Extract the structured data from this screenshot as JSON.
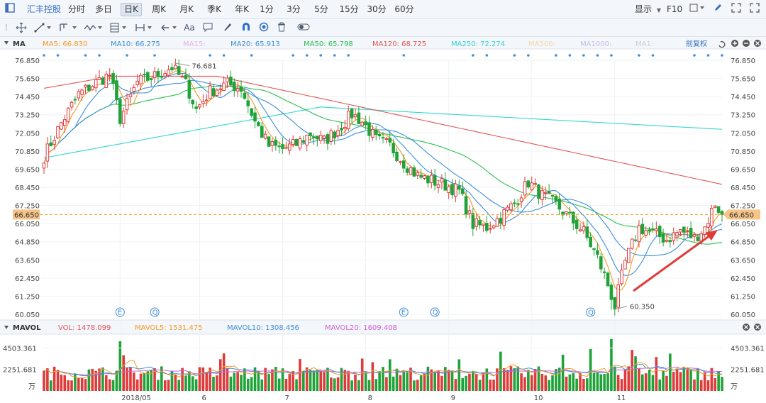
{
  "topbar": {
    "stock_name": "汇丰控股",
    "periods": [
      "分时",
      "多日",
      "日K",
      "周K",
      "月K",
      "季K",
      "年K",
      "1分",
      "3分",
      "5分",
      "15分",
      "30分",
      "60分"
    ],
    "active_period": "日K",
    "display_label": "显示",
    "f10_label": "F10"
  },
  "toolbar": {
    "text_tool": "Aa"
  },
  "main_panel": {
    "title": "MA",
    "restore_label": "前复权",
    "ma_legend": [
      {
        "label": "MA5: 66.830",
        "color": "#f59a23"
      },
      {
        "label": "MA10: 66.275",
        "color": "#3d8fd8"
      },
      {
        "label": "MA15:",
        "color": "#e1b6e0"
      },
      {
        "label": "MA20: 65.913",
        "color": "#3d8fd8"
      },
      {
        "label": "MA50: 65.798",
        "color": "#2bbf4e"
      },
      {
        "label": "MA120: 68.725",
        "color": "#e25858"
      },
      {
        "label": "MA250: 72.274",
        "color": "#33d6d0"
      },
      {
        "label": "MA500:",
        "color": "#f5d7a6"
      },
      {
        "label": "MA1000:",
        "color": "#c6bde8"
      },
      {
        "label": "MA1:",
        "color": "#c9cfd6"
      }
    ],
    "current_price": "66.650",
    "high_label": "76.681",
    "low_label": "60.350",
    "event_markers": [
      "E",
      "Q",
      "E",
      "Q",
      "Q"
    ]
  },
  "volume_panel": {
    "title": "MAVOL",
    "legend": [
      {
        "label": "VOL: 1478.099",
        "color": "#e25858"
      },
      {
        "label": "MAVOL5: 1531.475",
        "color": "#f59a23"
      },
      {
        "label": "MAVOL10: 1308.456",
        "color": "#3d8fd8"
      },
      {
        "label": "MAVOL20: 1609.408",
        "color": "#d05ed6"
      }
    ],
    "ticks": [
      "4503.361",
      "2251.681"
    ],
    "unit": "万"
  },
  "x_labels": [
    "2018/05",
    "6",
    "7",
    "8",
    "9",
    "10",
    "11"
  ],
  "chart_data": {
    "type": "candlestick",
    "y_ticks": [
      "76.850",
      "75.650",
      "74.450",
      "73.250",
      "72.050",
      "70.850",
      "69.650",
      "68.450",
      "67.250",
      "66.050",
      "64.850",
      "63.650",
      "62.450",
      "61.250",
      "60.050"
    ],
    "ylim": [
      60.05,
      76.85
    ],
    "period_high": 76.681,
    "period_low": 60.35,
    "last_close": 66.65,
    "ma_latest": {
      "MA5": 66.83,
      "MA10": 66.275,
      "MA20": 65.913,
      "MA50": 65.798,
      "MA120": 68.725,
      "MA250": 72.274
    },
    "volume_latest": {
      "VOL": 1478.099,
      "MAVOL5": 1531.475,
      "MAVOL10": 1308.456,
      "MAVOL20": 1609.408
    },
    "close_anchors": [
      [
        0,
        70.5
      ],
      [
        5,
        72.7
      ],
      [
        10,
        74.6
      ],
      [
        15,
        75.4
      ],
      [
        19,
        75.9
      ],
      [
        22,
        73.0
      ],
      [
        27,
        75.4
      ],
      [
        32,
        75.8
      ],
      [
        37,
        76.4
      ],
      [
        41,
        75.3
      ],
      [
        44,
        73.6
      ],
      [
        48,
        74.8
      ],
      [
        53,
        75.3
      ],
      [
        57,
        75.0
      ],
      [
        61,
        72.8
      ],
      [
        65,
        71.2
      ],
      [
        69,
        71.0
      ],
      [
        73,
        71.3
      ],
      [
        77,
        72.0
      ],
      [
        81,
        71.5
      ],
      [
        85,
        72.3
      ],
      [
        89,
        73.3
      ],
      [
        92,
        72.8
      ],
      [
        96,
        71.6
      ],
      [
        100,
        71.2
      ],
      [
        104,
        70.1
      ],
      [
        108,
        69.2
      ],
      [
        112,
        68.9
      ],
      [
        116,
        68.6
      ],
      [
        120,
        68.2
      ],
      [
        124,
        66.0
      ],
      [
        128,
        65.8
      ],
      [
        132,
        66.5
      ],
      [
        136,
        67.4
      ],
      [
        140,
        68.8
      ],
      [
        144,
        67.9
      ],
      [
        148,
        67.3
      ],
      [
        152,
        66.4
      ],
      [
        156,
        65.5
      ],
      [
        160,
        63.8
      ],
      [
        163,
        62.0
      ],
      [
        165,
        60.6
      ],
      [
        168,
        63.5
      ],
      [
        172,
        65.8
      ],
      [
        176,
        65.4
      ],
      [
        180,
        65.0
      ],
      [
        184,
        65.6
      ],
      [
        188,
        65.1
      ],
      [
        191,
        65.8
      ],
      [
        194,
        67.4
      ],
      [
        196,
        66.65
      ]
    ],
    "events": [
      {
        "label": "E",
        "i": 22
      },
      {
        "label": "Q",
        "i": 32
      },
      {
        "label": "E",
        "i": 104
      },
      {
        "label": "Q",
        "i": 113
      },
      {
        "label": "Q",
        "i": 158
      }
    ]
  }
}
